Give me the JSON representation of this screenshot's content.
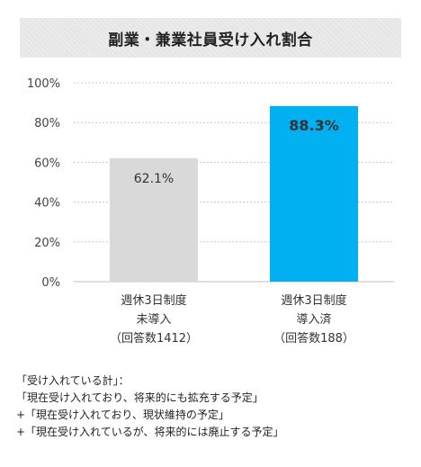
{
  "title": "副業・兼業社員受け入れ割合",
  "chart_data": {
    "type": "bar",
    "title": "副業・兼業社員受け入れ割合",
    "categories": [
      [
        "週休3日制度",
        "未導入",
        "（回答数1412）"
      ],
      [
        "週休3日制度",
        "導入済",
        "（回答数188）"
      ]
    ],
    "values": [
      62.1,
      88.3
    ],
    "value_labels": [
      "62.1%",
      "88.3%"
    ],
    "bar_colors": [
      "#d9d9d9",
      "#00b0f0"
    ],
    "ylim": [
      0,
      100
    ],
    "yticks": [
      0,
      20,
      40,
      60,
      80,
      100
    ],
    "ytick_labels": [
      "0%",
      "20%",
      "40%",
      "60%",
      "80%",
      "100%"
    ],
    "grid": true,
    "xlabel": "",
    "ylabel": ""
  },
  "notes": [
    "「受け入れている計」：",
    "「現在受け入れており、将来的にも拡充する予定」",
    "+「現在受け入れており、現状維持の予定」",
    "+「現在受け入れているが、将来的には廃止する予定」"
  ]
}
